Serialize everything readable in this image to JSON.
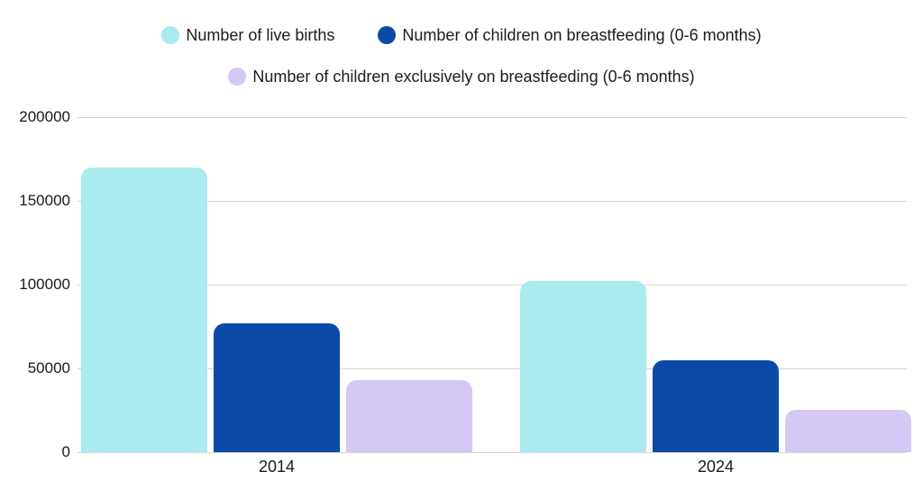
{
  "chart_data": {
    "type": "bar",
    "title": "",
    "xlabel": "",
    "ylabel": "",
    "categories": [
      "2014",
      "2024"
    ],
    "series": [
      {
        "name": "Number of live births",
        "color": "#a9ebee",
        "values": [
          170000,
          102000
        ]
      },
      {
        "name": "Number of children on breastfeeding (0-6 months)",
        "color": "#0b4ba7",
        "values": [
          77000,
          55000
        ]
      },
      {
        "name": "Number of children exclusively on breastfeeding (0-6 months)",
        "color": "#d6c8f4",
        "values": [
          43000,
          25000
        ]
      }
    ],
    "ylim": [
      0,
      200000
    ],
    "yticks": [
      0,
      50000,
      100000,
      150000,
      200000
    ],
    "ytick_labels": [
      "0",
      "50000",
      "100000",
      "150000",
      "200000"
    ],
    "grid": true,
    "legend_position": "top"
  },
  "colors": {
    "background": "#ffffff",
    "gridline": "#d5d5d5",
    "text": "#1a1a1a"
  }
}
